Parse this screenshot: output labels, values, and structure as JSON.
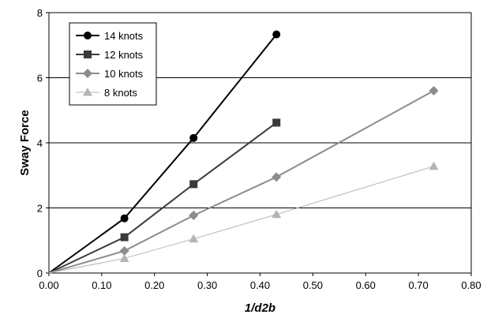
{
  "chart_data": {
    "type": "line",
    "title": "",
    "xlabel": "1/d2b",
    "ylabel": "Sway Force",
    "xlim": [
      0,
      0.8
    ],
    "ylim": [
      0,
      8
    ],
    "x_ticks": [
      "0.00",
      "0.10",
      "0.20",
      "0.30",
      "0.40",
      "0.50",
      "0.60",
      "0.70",
      "0.80"
    ],
    "y_ticks": [
      "0",
      "2",
      "4",
      "6",
      "8"
    ],
    "grid": "horizontal major gridlines",
    "legend_position": "top-left",
    "series": [
      {
        "name": "14 knots",
        "marker": "circle",
        "color": "#000000",
        "x": [
          0,
          0.143,
          0.274,
          0.431
        ],
        "y": [
          0,
          1.68,
          4.15,
          7.33
        ]
      },
      {
        "name": "12 knots",
        "marker": "square",
        "color": "#3a3a3a",
        "x": [
          0,
          0.143,
          0.274,
          0.431
        ],
        "y": [
          0,
          1.1,
          2.73,
          4.62
        ]
      },
      {
        "name": "10 knots",
        "marker": "diamond",
        "color": "#8c8c8c",
        "x": [
          0,
          0.143,
          0.274,
          0.431,
          0.729
        ],
        "y": [
          0,
          0.68,
          1.77,
          2.95,
          5.6
        ]
      },
      {
        "name": "8 knots",
        "marker": "triangle",
        "color": "#b4b4b4",
        "x": [
          0,
          0.143,
          0.274,
          0.431,
          0.729
        ],
        "y": [
          0,
          0.45,
          1.05,
          1.8,
          3.28
        ]
      }
    ]
  }
}
